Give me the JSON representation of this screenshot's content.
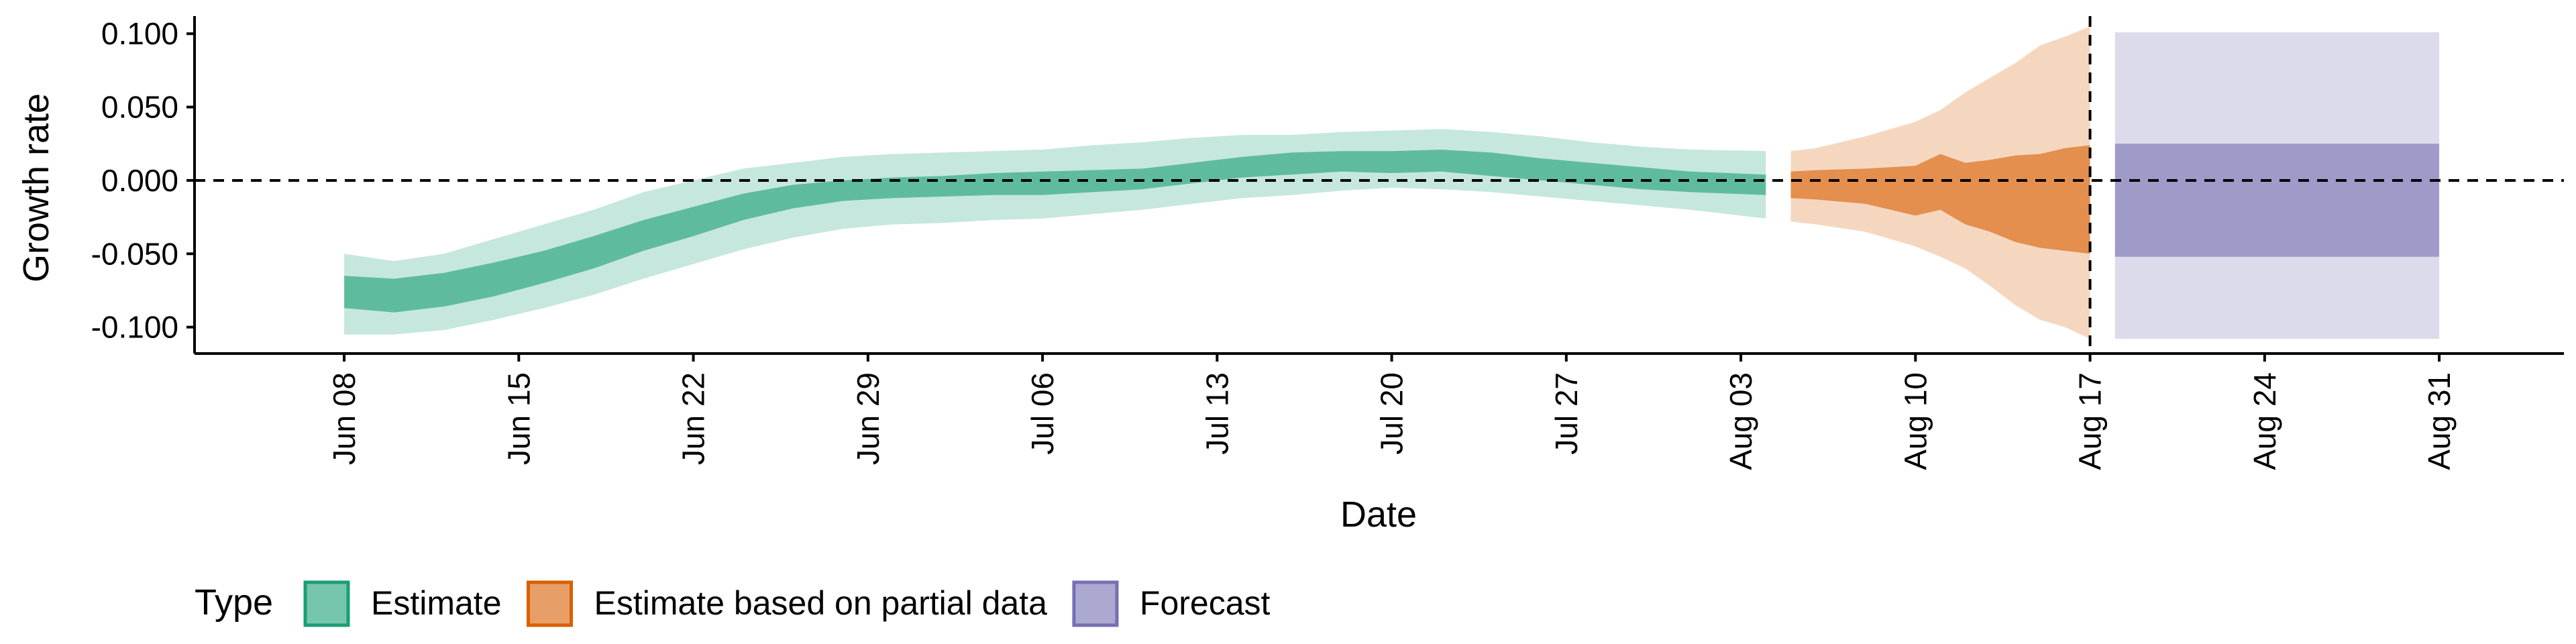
{
  "chart_data": {
    "type": "area",
    "xlabel": "Date",
    "ylabel": "Growth rate",
    "x_ticks": [
      "2020-06-08",
      "2020-06-15",
      "2020-06-22",
      "2020-06-29",
      "2020-07-06",
      "2020-07-13",
      "2020-07-20",
      "2020-07-27",
      "2020-08-03",
      "2020-08-10",
      "2020-08-17",
      "2020-08-24",
      "2020-08-31"
    ],
    "x_tick_labels": [
      "Jun 08",
      "Jun 15",
      "Jun 22",
      "Jun 29",
      "Jul 06",
      "Jul 13",
      "Jul 20",
      "Jul 27",
      "Aug 03",
      "Aug 10",
      "Aug 17",
      "Aug 24",
      "Aug 31"
    ],
    "y_ticks": [
      -0.1,
      -0.05,
      0,
      0.05,
      0.1
    ],
    "y_tick_labels": [
      "-0.100",
      "-0.050",
      "0.000",
      "0.050",
      "0.100"
    ],
    "ylim": [
      -0.118,
      0.112
    ],
    "xlim": [
      "2020-06-02",
      "2020-09-05"
    ],
    "reference_lines": {
      "horizontal_y": 0,
      "vertical_x": "2020-08-17"
    },
    "legend": {
      "title": "Type",
      "position": "bottom-left",
      "items": [
        {
          "label": "Estimate",
          "series": "estimate"
        },
        {
          "label": "Estimate based on partial data",
          "series": "partial"
        },
        {
          "label": "Forecast",
          "series": "forecast"
        }
      ]
    },
    "colors": {
      "estimate": "#1B9E77",
      "partial": "#D95F02",
      "forecast": "#7570B3",
      "inner_opacity": 0.6,
      "outer_opacity": 0.25
    },
    "series": [
      {
        "id": "estimate",
        "x": [
          "2020-06-08",
          "2020-06-10",
          "2020-06-12",
          "2020-06-14",
          "2020-06-16",
          "2020-06-18",
          "2020-06-20",
          "2020-06-22",
          "2020-06-24",
          "2020-06-26",
          "2020-06-28",
          "2020-06-30",
          "2020-07-02",
          "2020-07-04",
          "2020-07-06",
          "2020-07-08",
          "2020-07-10",
          "2020-07-12",
          "2020-07-14",
          "2020-07-16",
          "2020-07-18",
          "2020-07-20",
          "2020-07-22",
          "2020-07-24",
          "2020-07-26",
          "2020-07-28",
          "2020-07-30",
          "2020-08-01",
          "2020-08-04"
        ],
        "outer_lower": [
          -0.105,
          -0.105,
          -0.102,
          -0.095,
          -0.087,
          -0.078,
          -0.067,
          -0.057,
          -0.047,
          -0.039,
          -0.033,
          -0.03,
          -0.029,
          -0.027,
          -0.026,
          -0.023,
          -0.02,
          -0.016,
          -0.012,
          -0.01,
          -0.007,
          -0.005,
          -0.006,
          -0.008,
          -0.011,
          -0.014,
          -0.017,
          -0.02,
          -0.026
        ],
        "inner_lower": [
          -0.087,
          -0.09,
          -0.086,
          -0.079,
          -0.07,
          -0.06,
          -0.048,
          -0.038,
          -0.027,
          -0.019,
          -0.014,
          -0.012,
          -0.011,
          -0.01,
          -0.01,
          -0.008,
          -0.006,
          -0.002,
          0.002,
          0.004,
          0.006,
          0.005,
          0.006,
          0.003,
          0.0,
          -0.003,
          -0.006,
          -0.008,
          -0.01
        ],
        "inner_upper": [
          -0.065,
          -0.067,
          -0.063,
          -0.056,
          -0.048,
          -0.038,
          -0.027,
          -0.018,
          -0.009,
          -0.003,
          0.0,
          0.002,
          0.003,
          0.005,
          0.006,
          0.007,
          0.008,
          0.012,
          0.016,
          0.019,
          0.02,
          0.02,
          0.021,
          0.019,
          0.015,
          0.012,
          0.009,
          0.006,
          0.004
        ],
        "outer_upper": [
          -0.05,
          -0.055,
          -0.05,
          -0.04,
          -0.03,
          -0.02,
          -0.008,
          0.0,
          0.008,
          0.012,
          0.016,
          0.018,
          0.019,
          0.02,
          0.021,
          0.024,
          0.026,
          0.029,
          0.031,
          0.031,
          0.033,
          0.034,
          0.035,
          0.033,
          0.03,
          0.026,
          0.023,
          0.021,
          0.02
        ]
      },
      {
        "id": "partial",
        "x": [
          "2020-08-05",
          "2020-08-06",
          "2020-08-08",
          "2020-08-10",
          "2020-08-11",
          "2020-08-12",
          "2020-08-13",
          "2020-08-14",
          "2020-08-15",
          "2020-08-16",
          "2020-08-17"
        ],
        "outer_lower": [
          -0.028,
          -0.03,
          -0.035,
          -0.045,
          -0.052,
          -0.06,
          -0.072,
          -0.085,
          -0.095,
          -0.1,
          -0.108
        ],
        "inner_lower": [
          -0.012,
          -0.013,
          -0.016,
          -0.024,
          -0.02,
          -0.03,
          -0.035,
          -0.042,
          -0.046,
          -0.048,
          -0.05
        ],
        "inner_upper": [
          0.006,
          0.007,
          0.008,
          0.01,
          0.018,
          0.012,
          0.014,
          0.017,
          0.018,
          0.022,
          0.024
        ],
        "outer_upper": [
          0.02,
          0.022,
          0.03,
          0.04,
          0.048,
          0.06,
          0.07,
          0.08,
          0.092,
          0.098,
          0.105
        ]
      },
      {
        "id": "forecast",
        "x": [
          "2020-08-18",
          "2020-08-31"
        ],
        "outer_lower": [
          -0.108,
          -0.108
        ],
        "inner_lower": [
          -0.052,
          -0.052
        ],
        "inner_upper": [
          0.025,
          0.025
        ],
        "outer_upper": [
          0.101,
          0.101
        ]
      }
    ]
  }
}
